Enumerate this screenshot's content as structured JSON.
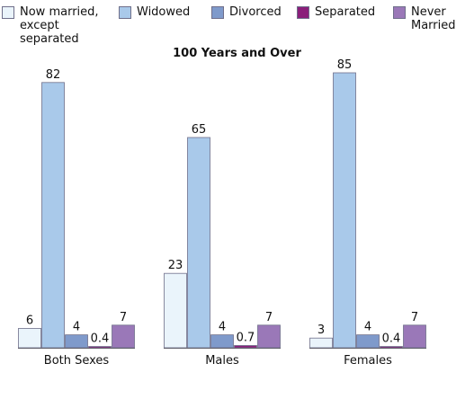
{
  "chart_data": {
    "type": "bar",
    "title": "100 Years and Over",
    "categories": [
      "Both Sexes",
      "Males",
      "Females"
    ],
    "series": [
      {
        "name": "Now married,\nexcept\nseparated",
        "values": [
          6,
          23,
          3
        ],
        "color": "#eaf4fb"
      },
      {
        "name": "Widowed",
        "values": [
          82,
          65,
          85
        ],
        "color": "#a9c9ea"
      },
      {
        "name": "Divorced",
        "values": [
          4,
          4,
          4
        ],
        "color": "#7f9acb"
      },
      {
        "name": "Separated",
        "values": [
          0.4,
          0.7,
          0.4
        ],
        "color": "#8a1f7a"
      },
      {
        "name": "Never\nMarried",
        "values": [
          7,
          7,
          7
        ],
        "color": "#9a78b8"
      }
    ],
    "data_labels": [
      [
        "6",
        "82",
        "4",
        "0.4",
        "7"
      ],
      [
        "23",
        "65",
        "4",
        "0.7",
        "7"
      ],
      [
        "3",
        "85",
        "4",
        "0.4",
        "7"
      ]
    ],
    "ylim": [
      0,
      100
    ],
    "grid": false,
    "legend": "top"
  }
}
